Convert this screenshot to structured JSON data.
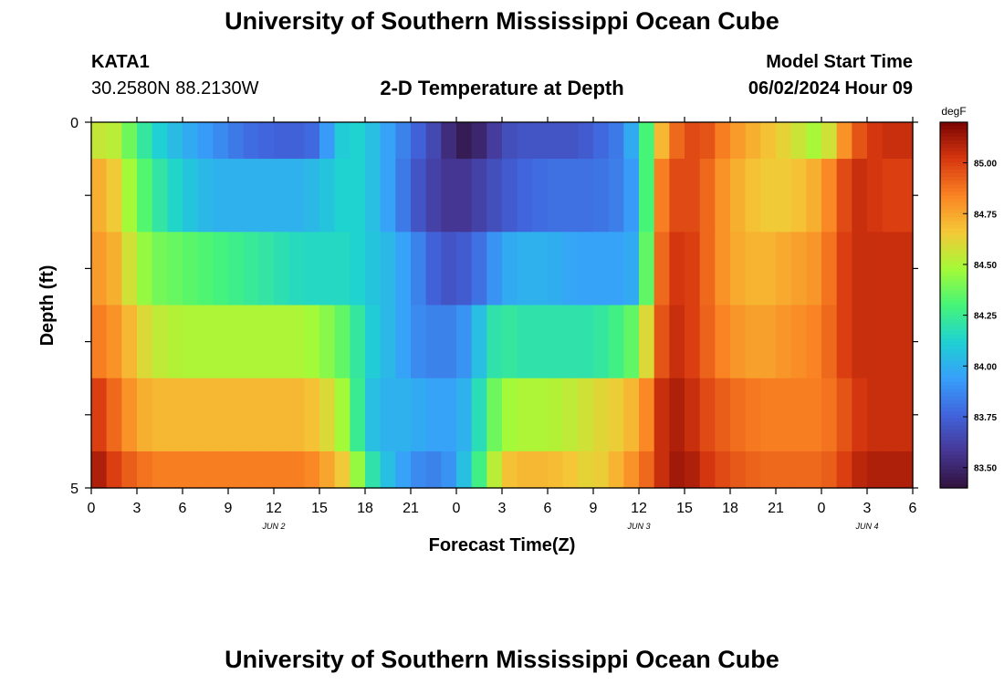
{
  "header": {
    "title": "University of Southern Mississippi Ocean Cube",
    "station": "KATA1",
    "coords": "30.2580N  88.2130W",
    "subtitle": "2-D Temperature at Depth",
    "model_start_label": "Model Start Time",
    "model_start_value": "06/02/2024 Hour 09"
  },
  "footer": {
    "title": "University of Southern Mississippi Ocean Cube"
  },
  "chart_data": {
    "type": "heatmap",
    "title": "2-D Temperature at Depth",
    "xlabel": "Forecast Time(Z)",
    "ylabel": "Depth (ft)",
    "x_tick_labels": [
      "0",
      "3",
      "6",
      "9",
      "12",
      "15",
      "18",
      "21",
      "0",
      "3",
      "6",
      "9",
      "12",
      "15",
      "18",
      "21",
      "0",
      "3",
      "6"
    ],
    "x_tick_hours": [
      0,
      3,
      6,
      9,
      12,
      15,
      18,
      21,
      24,
      27,
      30,
      33,
      36,
      39,
      42,
      45,
      48,
      51,
      54
    ],
    "date_labels": [
      {
        "label": "JUN 2",
        "hour": 12
      },
      {
        "label": "JUN 3",
        "hour": 36
      },
      {
        "label": "JUN 4",
        "hour": 51
      }
    ],
    "y_tick_labels": [
      "0",
      "5"
    ],
    "ylim": [
      0,
      5
    ],
    "xlim_hours": [
      0,
      54
    ],
    "colorbar": {
      "unit": "degF",
      "range": [
        83.4,
        85.2
      ],
      "tick_labels": [
        "85.00",
        "84.75",
        "84.50",
        "84.25",
        "84.00",
        "83.75",
        "83.50"
      ],
      "tick_values": [
        85.0,
        84.75,
        84.5,
        84.25,
        84.0,
        83.75,
        83.5
      ]
    },
    "depth_rows_ft": [
      0.0,
      1.0,
      2.0,
      3.0,
      4.0,
      5.0
    ],
    "anchor_hours": [
      0,
      1,
      2,
      3,
      4,
      6,
      8,
      10,
      12,
      14,
      15,
      16,
      17,
      18,
      19,
      20,
      21,
      22,
      23,
      24,
      25,
      26,
      27,
      28,
      30,
      32,
      33,
      35,
      36,
      37,
      37.5,
      38,
      39,
      40,
      42,
      44,
      46,
      48,
      49,
      50,
      51,
      52,
      54
    ],
    "temperature_rows_degF": [
      [
        84.5,
        84.6,
        84.45,
        84.3,
        84.15,
        84.0,
        83.9,
        83.8,
        83.75,
        83.75,
        83.8,
        84.05,
        84.15,
        84.1,
        84.0,
        83.9,
        83.8,
        83.7,
        83.6,
        83.45,
        83.45,
        83.55,
        83.65,
        83.7,
        83.7,
        83.7,
        83.75,
        83.85,
        84.1,
        84.5,
        84.7,
        84.85,
        84.95,
        85.0,
        84.8,
        84.7,
        84.6,
        84.45,
        84.7,
        84.9,
        85.0,
        85.05,
        85.05
      ],
      [
        84.7,
        84.75,
        84.55,
        84.4,
        84.25,
        84.1,
        84.0,
        84.0,
        84.0,
        84.0,
        84.05,
        84.1,
        84.15,
        84.1,
        84.0,
        83.9,
        83.75,
        83.65,
        83.6,
        83.55,
        83.6,
        83.65,
        83.7,
        83.75,
        83.8,
        83.8,
        83.8,
        83.85,
        84.0,
        84.6,
        84.85,
        84.95,
        85.0,
        84.95,
        84.75,
        84.65,
        84.65,
        84.75,
        84.9,
        85.05,
        85.05,
        85.0,
        85.0
      ],
      [
        84.75,
        84.8,
        84.65,
        84.5,
        84.4,
        84.35,
        84.3,
        84.25,
        84.2,
        84.15,
        84.15,
        84.15,
        84.15,
        84.1,
        84.05,
        84.0,
        83.9,
        83.8,
        83.7,
        83.7,
        83.75,
        83.85,
        83.95,
        84.0,
        84.0,
        83.95,
        83.95,
        83.95,
        84.0,
        84.7,
        84.9,
        85.0,
        85.05,
        84.95,
        84.75,
        84.7,
        84.75,
        84.8,
        84.95,
        85.05,
        85.05,
        85.05,
        85.05
      ],
      [
        84.85,
        84.85,
        84.75,
        84.65,
        84.55,
        84.5,
        84.5,
        84.5,
        84.5,
        84.5,
        84.45,
        84.4,
        84.3,
        84.15,
        84.05,
        84.0,
        83.9,
        83.85,
        83.85,
        83.85,
        83.95,
        84.15,
        84.25,
        84.2,
        84.2,
        84.2,
        84.2,
        84.3,
        84.4,
        84.8,
        84.95,
        85.05,
        85.05,
        84.95,
        84.8,
        84.75,
        84.8,
        84.85,
        84.95,
        85.05,
        85.05,
        85.05,
        85.05
      ],
      [
        85.05,
        84.95,
        84.85,
        84.75,
        84.7,
        84.7,
        84.7,
        84.7,
        84.7,
        84.7,
        84.65,
        84.55,
        84.4,
        84.1,
        84.0,
        84.0,
        84.0,
        83.95,
        83.95,
        83.95,
        84.05,
        84.3,
        84.45,
        84.5,
        84.5,
        84.55,
        84.6,
        84.65,
        84.75,
        84.9,
        85.05,
        85.1,
        85.1,
        85.0,
        84.9,
        84.85,
        84.85,
        84.85,
        84.9,
        85.0,
        85.05,
        85.05,
        85.05
      ],
      [
        85.15,
        85.05,
        84.95,
        84.9,
        84.85,
        84.85,
        84.85,
        84.85,
        84.85,
        84.85,
        84.8,
        84.7,
        84.6,
        84.3,
        84.1,
        84.0,
        83.9,
        83.85,
        83.85,
        83.95,
        84.15,
        84.4,
        84.65,
        84.7,
        84.7,
        84.65,
        84.6,
        84.75,
        84.85,
        84.95,
        85.05,
        85.1,
        85.15,
        85.05,
        84.95,
        84.9,
        84.9,
        84.9,
        84.95,
        85.05,
        85.1,
        85.1,
        85.1
      ]
    ]
  }
}
